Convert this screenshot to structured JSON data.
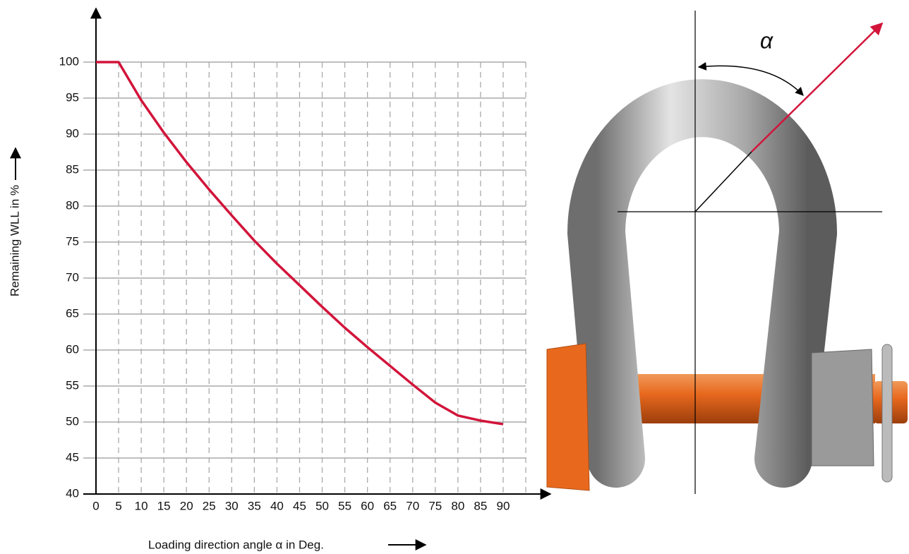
{
  "chart_data": {
    "type": "line",
    "x_label": "Loading direction angle α in Deg.",
    "y_label": "Remaining WLL in %",
    "x": [
      0,
      5,
      10,
      15,
      20,
      25,
      30,
      35,
      40,
      45,
      50,
      55,
      60,
      65,
      70,
      75,
      80,
      85,
      90
    ],
    "series": [
      {
        "color": "#d2143a",
        "values": [
          100,
          100,
          94.7,
          90.2,
          86.1,
          82.3,
          78.7,
          75.2,
          72.0,
          69.0,
          66.0,
          63.1,
          60.4,
          57.8,
          55.2,
          52.7,
          50.9,
          50.2,
          49.7
        ]
      }
    ],
    "xlim": [
      0,
      95
    ],
    "ylim": [
      40,
      100
    ],
    "xticks": [
      0,
      5,
      10,
      15,
      20,
      25,
      30,
      35,
      40,
      45,
      50,
      55,
      60,
      65,
      70,
      75,
      80,
      85,
      90
    ],
    "yticks": [
      40,
      45,
      50,
      55,
      60,
      65,
      70,
      75,
      80,
      85,
      90,
      95,
      100
    ],
    "grid": true
  },
  "illustration": {
    "angle_label": "α"
  }
}
